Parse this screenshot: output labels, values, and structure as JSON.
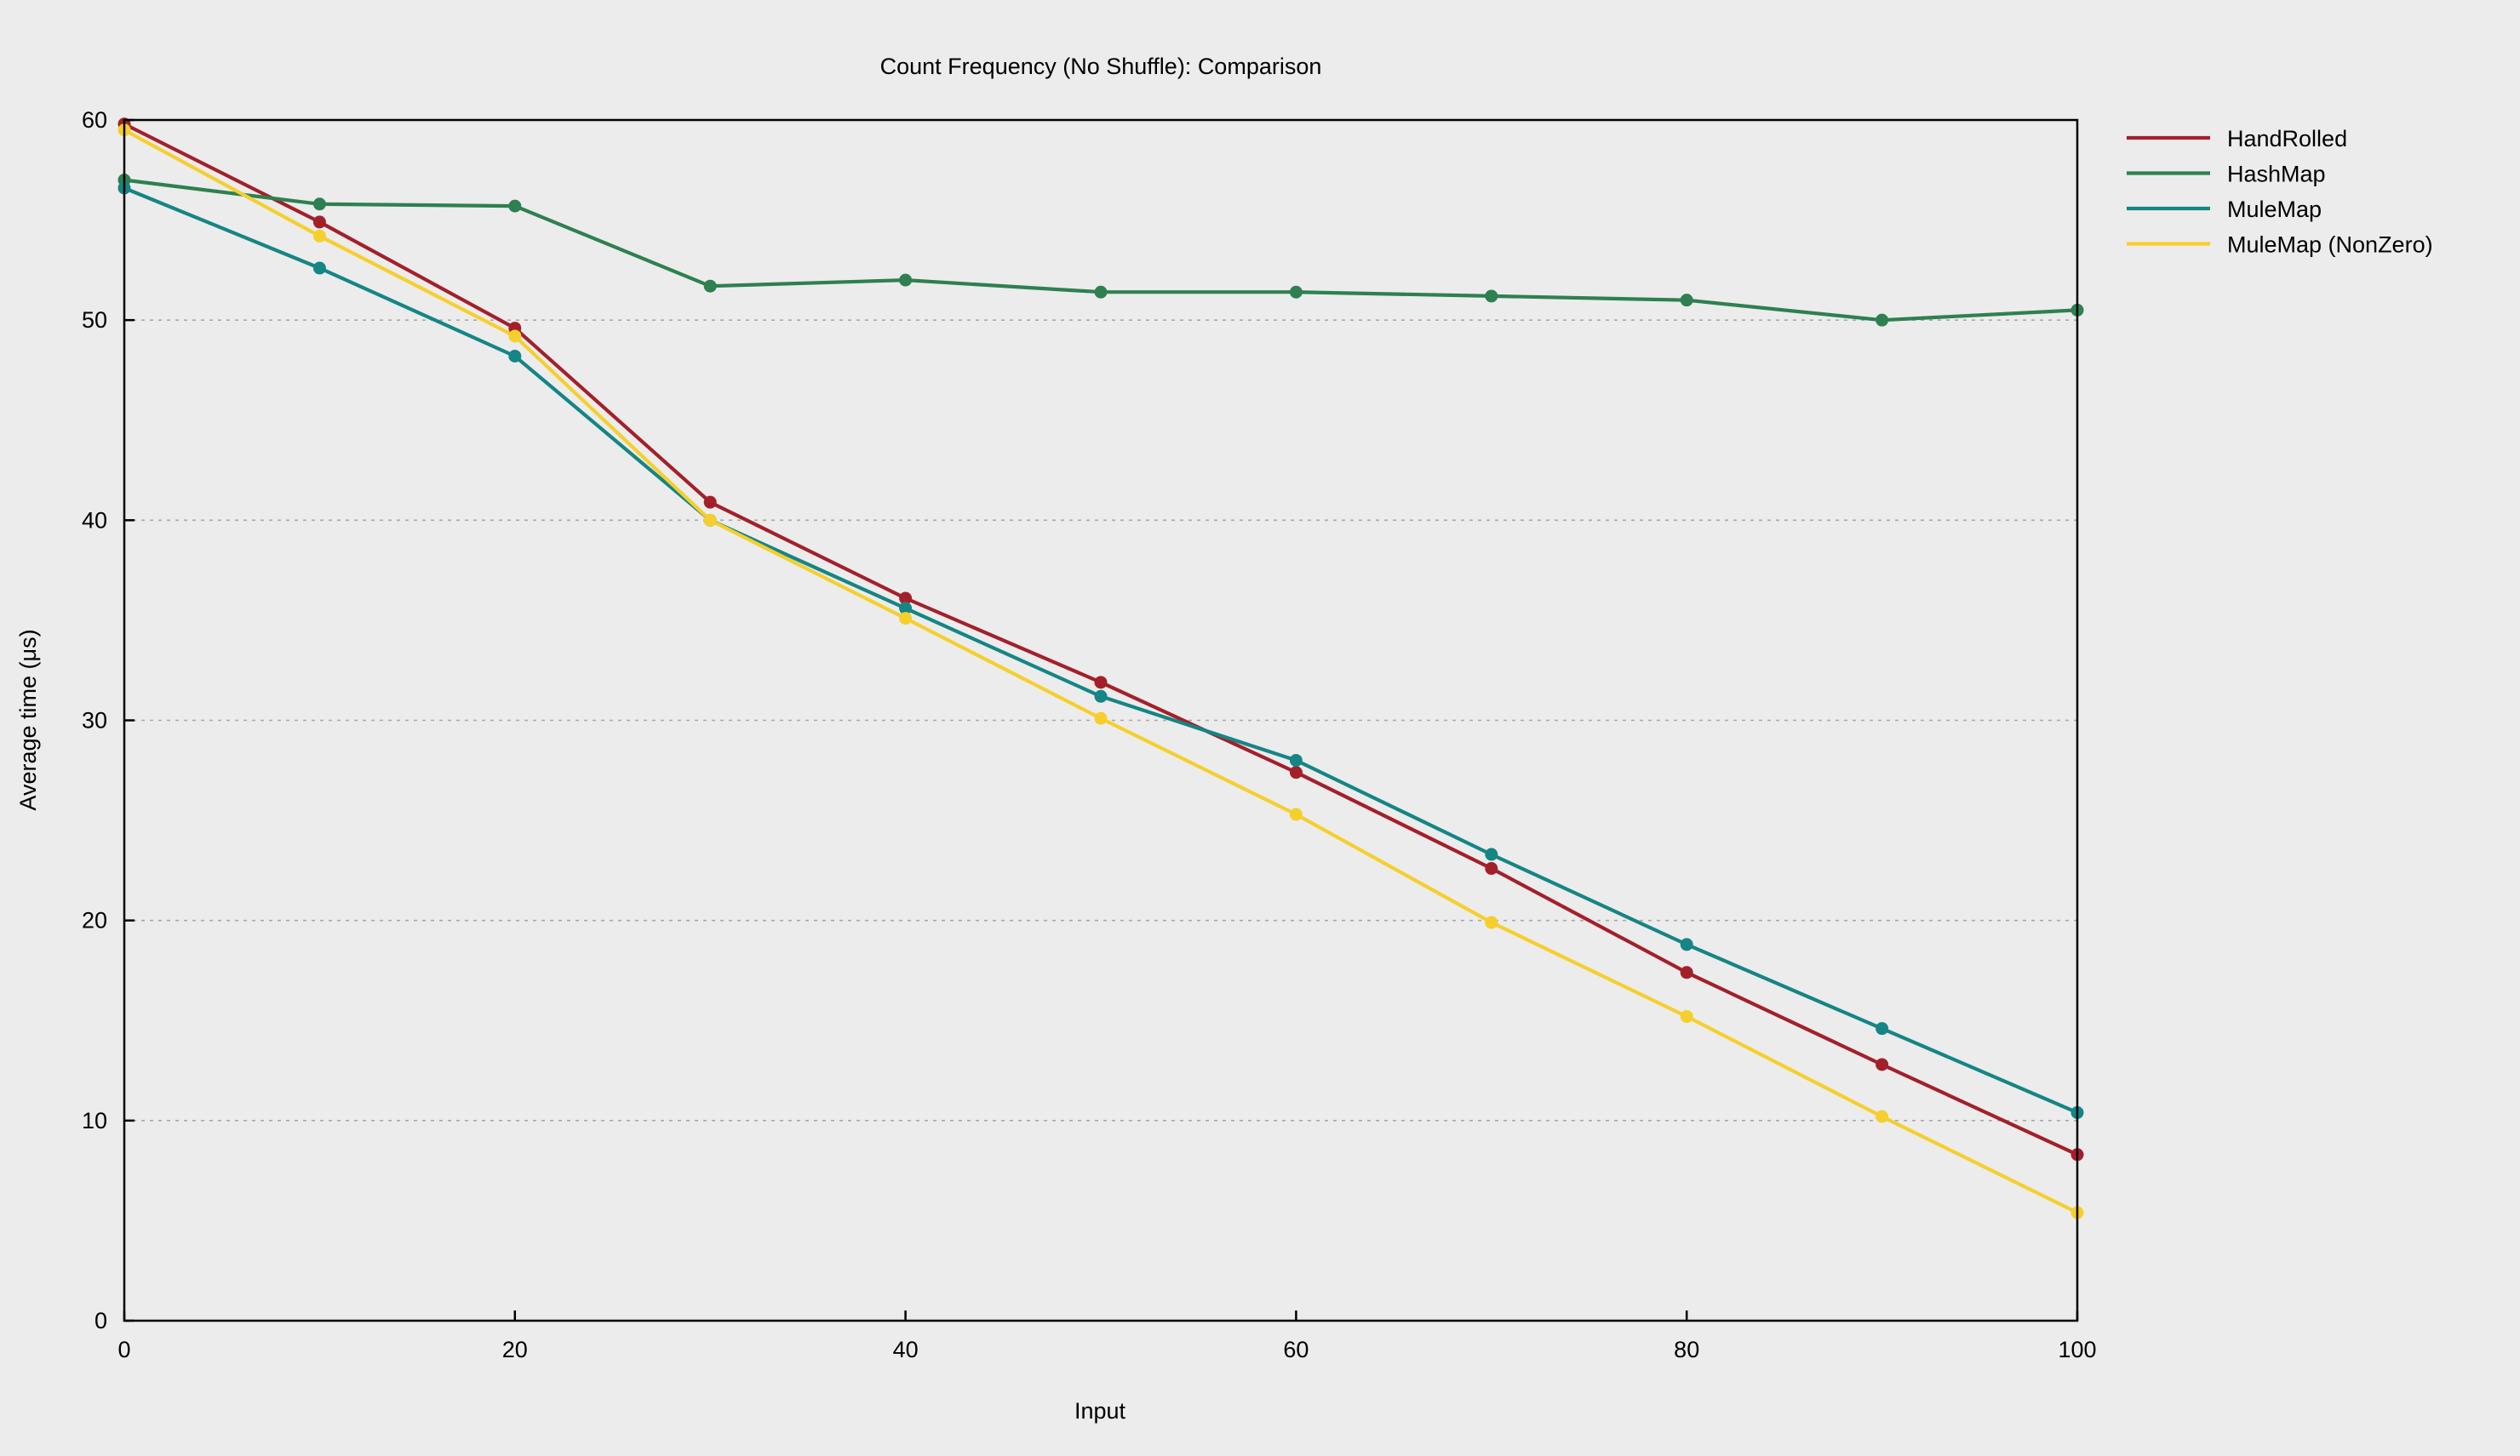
{
  "chart_data": {
    "type": "line",
    "title": "Count Frequency (No Shuffle): Comparison",
    "xlabel": "Input",
    "ylabel": "Average time (μs)",
    "xlim": [
      0,
      100
    ],
    "ylim": [
      0,
      60
    ],
    "x_ticks": [
      0,
      20,
      40,
      60,
      80,
      100
    ],
    "y_ticks": [
      0,
      10,
      20,
      30,
      40,
      50,
      60
    ],
    "grid": "horizontal dashed",
    "legend_position": "top-right outside",
    "x": [
      0,
      10,
      20,
      30,
      40,
      50,
      60,
      70,
      80,
      90,
      100
    ],
    "series": [
      {
        "name": "HandRolled",
        "color": "#a3202a",
        "values": [
          59.8,
          54.9,
          49.6,
          40.9,
          36.1,
          31.9,
          27.4,
          22.6,
          17.4,
          12.8,
          8.3
        ]
      },
      {
        "name": "HashMap",
        "color": "#2e8050",
        "values": [
          57.0,
          55.8,
          55.7,
          51.7,
          52.0,
          51.4,
          51.4,
          51.2,
          51.0,
          50.0,
          50.5
        ]
      },
      {
        "name": "MuleMap",
        "color": "#158585",
        "values": [
          56.6,
          52.6,
          48.2,
          40.0,
          35.6,
          31.2,
          28.0,
          23.3,
          18.8,
          14.6,
          10.4
        ]
      },
      {
        "name": "MuleMap (NonZero)",
        "color": "#f5cf2d",
        "values": [
          59.5,
          54.2,
          49.2,
          40.0,
          35.1,
          30.1,
          25.3,
          19.9,
          15.2,
          10.2,
          5.4
        ]
      }
    ]
  }
}
